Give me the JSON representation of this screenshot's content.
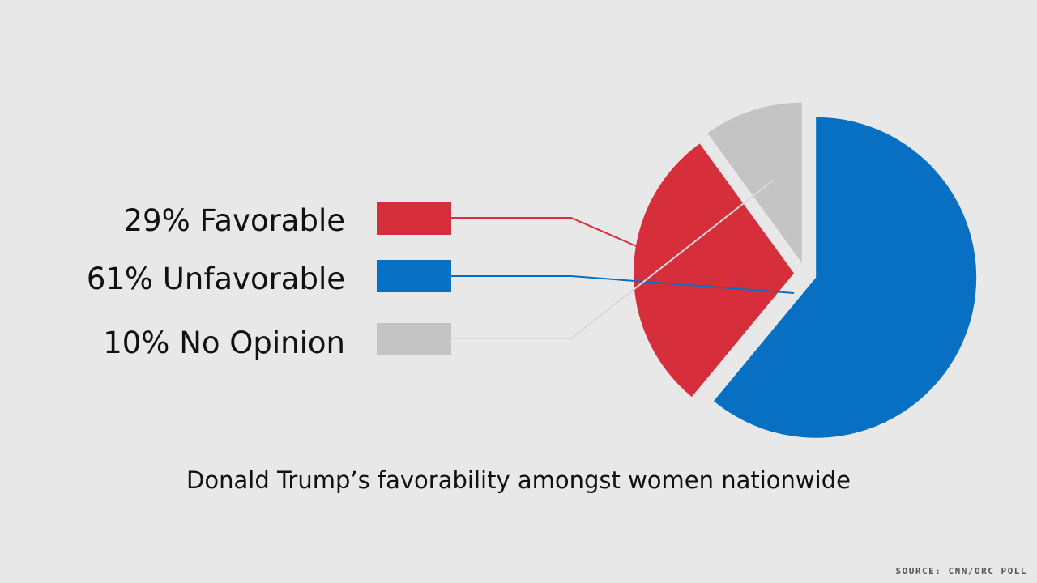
{
  "chart_data": {
    "type": "pie",
    "title": "Donald Trump’s favorability amongst women nationwide",
    "source": "SOURCE: CNN/ORC POLL",
    "slices": [
      {
        "label": "Favorable",
        "value": 29,
        "display": "29% Favorable",
        "color": "#d72e3b"
      },
      {
        "label": "Unfavorable",
        "value": 61,
        "display": "61% Unfavorable",
        "color": "#0770c2"
      },
      {
        "label": "No Opinion",
        "value": 10,
        "display": "10% No Opinion",
        "color": "#c4c4c4"
      }
    ],
    "legend_placement": "left",
    "exploded": true
  },
  "colors": {
    "background": "#e8e8e8",
    "text": "#111111"
  }
}
